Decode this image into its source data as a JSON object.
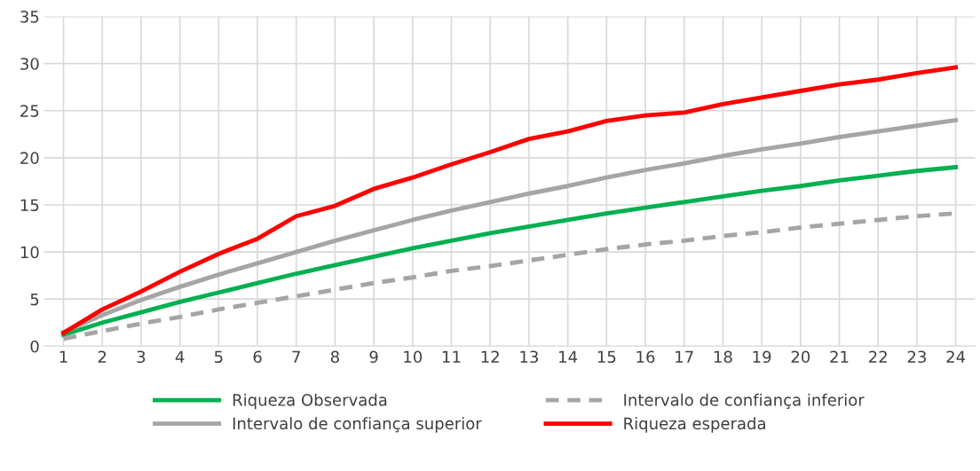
{
  "chart_data": {
    "type": "line",
    "categories": [
      "1",
      "2",
      "3",
      "4",
      "5",
      "6",
      "7",
      "8",
      "9",
      "10",
      "11",
      "12",
      "13",
      "14",
      "15",
      "16",
      "17",
      "18",
      "19",
      "20",
      "21",
      "22",
      "23",
      "24"
    ],
    "ylim": [
      0,
      35
    ],
    "yticks": [
      0,
      5,
      10,
      15,
      20,
      25,
      30,
      35
    ],
    "grid": true,
    "legend": "bottom",
    "marker": "none",
    "series": [
      {
        "name": "Riqueza Observada",
        "color": "#00b050",
        "line_style": "solid",
        "values": [
          1.2,
          2.5,
          3.6,
          4.7,
          5.7,
          6.7,
          7.7,
          8.6,
          9.5,
          10.4,
          11.2,
          12.0,
          12.7,
          13.4,
          14.1,
          14.7,
          15.3,
          15.9,
          16.5,
          17.0,
          17.6,
          18.1,
          18.6,
          19.0
        ]
      },
      {
        "name": "Intervalo de confiança inferior",
        "color": "#a5a5a5",
        "line_style": "dashed",
        "values": [
          0.8,
          1.6,
          2.4,
          3.1,
          3.9,
          4.6,
          5.3,
          6.0,
          6.7,
          7.3,
          8.0,
          8.5,
          9.1,
          9.7,
          10.3,
          10.8,
          11.2,
          11.7,
          12.1,
          12.6,
          13.0,
          13.4,
          13.8,
          14.1
        ]
      },
      {
        "name": "Intervalo de confiança superior",
        "color": "#a5a5a5",
        "line_style": "solid",
        "values": [
          1.5,
          3.3,
          4.9,
          6.3,
          7.6,
          8.8,
          10.0,
          11.2,
          12.3,
          13.4,
          14.4,
          15.3,
          16.2,
          17.0,
          17.9,
          18.7,
          19.4,
          20.2,
          20.9,
          21.5,
          22.2,
          22.8,
          23.4,
          24.0
        ]
      },
      {
        "name": "Riqueza esperada",
        "color": "#ff0000",
        "line_style": "solid",
        "values": [
          1.4,
          3.9,
          5.8,
          7.9,
          9.8,
          11.4,
          13.8,
          14.9,
          16.7,
          17.9,
          19.3,
          20.6,
          22.0,
          22.8,
          23.9,
          24.5,
          24.8,
          25.7,
          26.4,
          27.1,
          27.8,
          28.3,
          29.0,
          29.6
        ]
      }
    ]
  }
}
